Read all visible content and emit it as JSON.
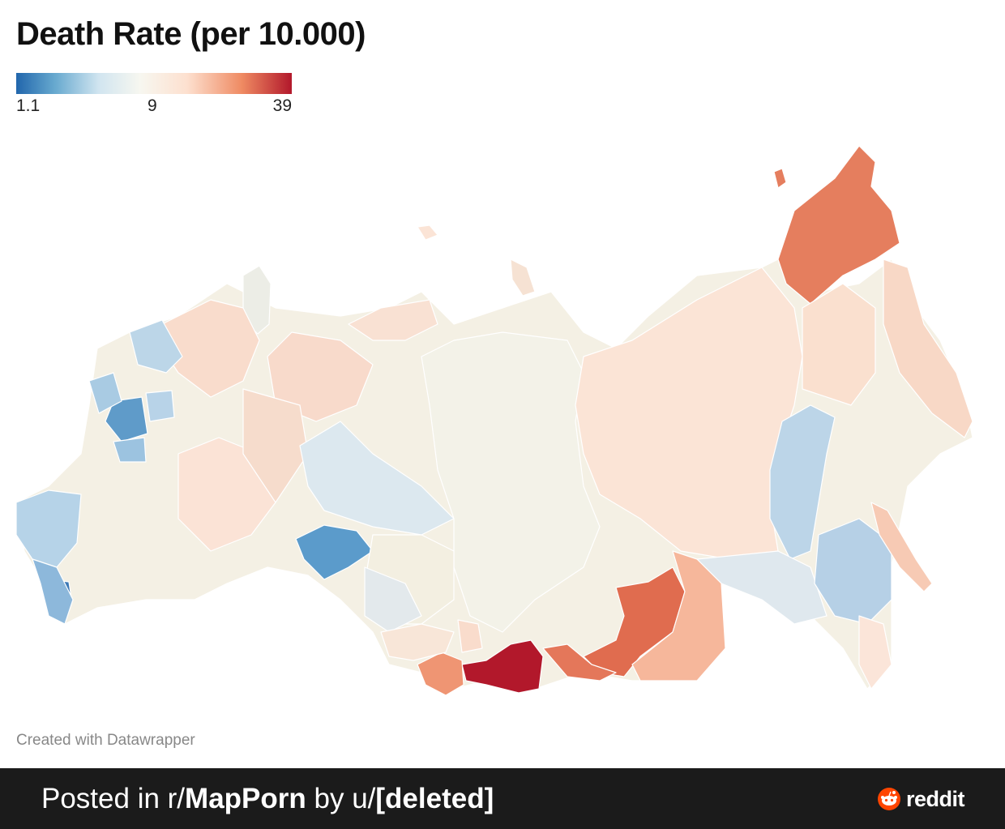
{
  "title": "Death Rate (per 10.000)",
  "legend": {
    "min_label": "1.1",
    "mid_label": "9",
    "max_label": "39",
    "min_value": 1.1,
    "mid_value": 9,
    "max_value": 39,
    "colors": [
      "#2166ac",
      "#67a9cf",
      "#d1e5f0",
      "#f7f7f0",
      "#fde0cf",
      "#ef8a62",
      "#b2182b"
    ]
  },
  "credit": "Created with Datawrapper",
  "footer": {
    "prefix": "Posted in r/",
    "subreddit": "MapPorn",
    "by": " by u/",
    "user": "[deleted]",
    "brand": "reddit"
  }
}
